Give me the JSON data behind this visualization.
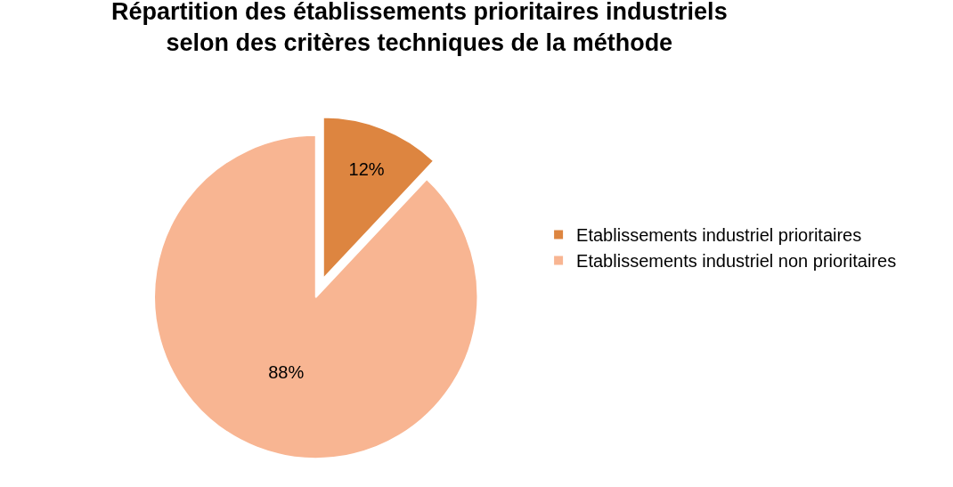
{
  "chart_data": {
    "type": "pie",
    "title": "Répartition des établissements prioritaires industriels\nselon des critères techniques de la méthode",
    "categories": [
      "Etablissements industriel prioritaires",
      "Etablissements industriel non prioritaires"
    ],
    "values": [
      12,
      88
    ],
    "value_labels": [
      "12%",
      "88%"
    ],
    "colors": [
      "#dd8540",
      "#f8b592"
    ],
    "legend": "right"
  }
}
